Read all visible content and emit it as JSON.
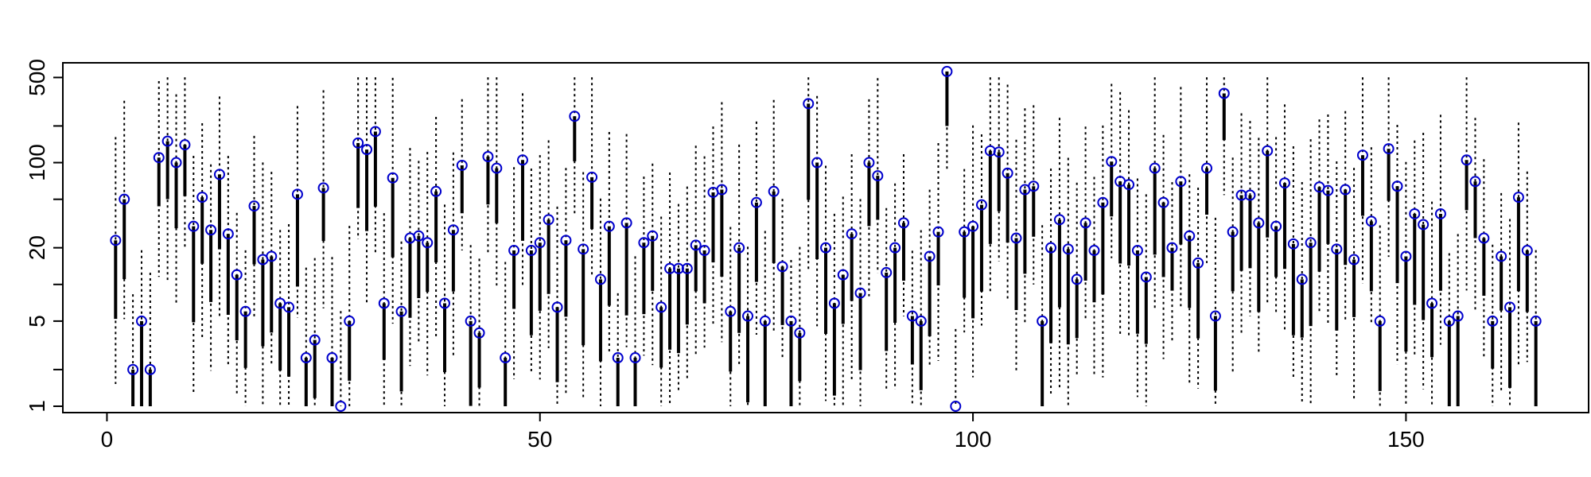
{
  "chart_data": {
    "type": "scatter",
    "title": "",
    "xlabel": "",
    "ylabel": "",
    "y_scale": "log",
    "xlim": [
      -5,
      171
    ],
    "ylim": [
      0.9,
      650
    ],
    "x_ticks": [
      {
        "value": 0,
        "label": "0"
      },
      {
        "value": 50,
        "label": "50"
      },
      {
        "value": 100,
        "label": "100"
      },
      {
        "value": 150,
        "label": "150"
      }
    ],
    "y_ticks": [
      {
        "value": 1,
        "label": "1"
      },
      {
        "value": 5,
        "label": "5"
      },
      {
        "value": 20,
        "label": "20"
      },
      {
        "value": 100,
        "label": "100"
      },
      {
        "value": 500,
        "label": "500"
      }
    ],
    "y_minor_ticks": [
      2,
      10,
      50,
      200
    ],
    "colors": {
      "point": "#0000cc",
      "whisker": "#000000",
      "highlight": "#cc0000"
    },
    "highlight": {
      "x": 97,
      "y": 1,
      "marker": "cross"
    },
    "points": [
      {
        "x": 1,
        "y": 23
      },
      {
        "x": 2,
        "y": 50
      },
      {
        "x": 3,
        "y": 2
      },
      {
        "x": 4,
        "y": 5
      },
      {
        "x": 5,
        "y": 2
      },
      {
        "x": 6,
        "y": 110
      },
      {
        "x": 7,
        "y": 150
      },
      {
        "x": 8,
        "y": 100
      },
      {
        "x": 9,
        "y": 140
      },
      {
        "x": 10,
        "y": 30
      },
      {
        "x": 11,
        "y": 52
      },
      {
        "x": 12,
        "y": 28
      },
      {
        "x": 13,
        "y": 80
      },
      {
        "x": 14,
        "y": 26
      },
      {
        "x": 15,
        "y": 12
      },
      {
        "x": 16,
        "y": 6
      },
      {
        "x": 17,
        "y": 44
      },
      {
        "x": 18,
        "y": 16
      },
      {
        "x": 19,
        "y": 17
      },
      {
        "x": 20,
        "y": 7
      },
      {
        "x": 21,
        "y": 6.5
      },
      {
        "x": 22,
        "y": 55
      },
      {
        "x": 23,
        "y": 2.5
      },
      {
        "x": 24,
        "y": 3.5
      },
      {
        "x": 25,
        "y": 62
      },
      {
        "x": 26,
        "y": 2.5
      },
      {
        "x": 27,
        "y": 1
      },
      {
        "x": 28,
        "y": 5
      },
      {
        "x": 29,
        "y": 145
      },
      {
        "x": 30,
        "y": 128
      },
      {
        "x": 31,
        "y": 180
      },
      {
        "x": 32,
        "y": 7
      },
      {
        "x": 33,
        "y": 75
      },
      {
        "x": 34,
        "y": 6
      },
      {
        "x": 35,
        "y": 24
      },
      {
        "x": 36,
        "y": 25
      },
      {
        "x": 37,
        "y": 22
      },
      {
        "x": 38,
        "y": 58
      },
      {
        "x": 39,
        "y": 7
      },
      {
        "x": 40,
        "y": 28
      },
      {
        "x": 41,
        "y": 95
      },
      {
        "x": 42,
        "y": 5
      },
      {
        "x": 43,
        "y": 4
      },
      {
        "x": 44,
        "y": 112
      },
      {
        "x": 45,
        "y": 90
      },
      {
        "x": 46,
        "y": 2.5
      },
      {
        "x": 47,
        "y": 19
      },
      {
        "x": 48,
        "y": 105
      },
      {
        "x": 49,
        "y": 19
      },
      {
        "x": 50,
        "y": 22
      },
      {
        "x": 51,
        "y": 34
      },
      {
        "x": 52,
        "y": 6.5
      },
      {
        "x": 53,
        "y": 23
      },
      {
        "x": 54,
        "y": 240
      },
      {
        "x": 55,
        "y": 19.5
      },
      {
        "x": 56,
        "y": 76
      },
      {
        "x": 57,
        "y": 11
      },
      {
        "x": 58,
        "y": 30
      },
      {
        "x": 59,
        "y": 2.5
      },
      {
        "x": 60,
        "y": 32
      },
      {
        "x": 61,
        "y": 2.5
      },
      {
        "x": 62,
        "y": 22
      },
      {
        "x": 63,
        "y": 25
      },
      {
        "x": 64,
        "y": 6.5
      },
      {
        "x": 65,
        "y": 13.5
      },
      {
        "x": 66,
        "y": 13.5
      },
      {
        "x": 67,
        "y": 13.5
      },
      {
        "x": 68,
        "y": 21
      },
      {
        "x": 69,
        "y": 19
      },
      {
        "x": 70,
        "y": 57
      },
      {
        "x": 71,
        "y": 60
      },
      {
        "x": 72,
        "y": 6
      },
      {
        "x": 73,
        "y": 20
      },
      {
        "x": 74,
        "y": 5.5
      },
      {
        "x": 75,
        "y": 47
      },
      {
        "x": 76,
        "y": 5
      },
      {
        "x": 77,
        "y": 58
      },
      {
        "x": 78,
        "y": 14
      },
      {
        "x": 79,
        "y": 5
      },
      {
        "x": 80,
        "y": 4
      },
      {
        "x": 81,
        "y": 305
      },
      {
        "x": 82,
        "y": 100
      },
      {
        "x": 83,
        "y": 20
      },
      {
        "x": 84,
        "y": 7
      },
      {
        "x": 85,
        "y": 12
      },
      {
        "x": 86,
        "y": 26
      },
      {
        "x": 87,
        "y": 8.5
      },
      {
        "x": 88,
        "y": 100
      },
      {
        "x": 89,
        "y": 78
      },
      {
        "x": 90,
        "y": 12.5
      },
      {
        "x": 91,
        "y": 20
      },
      {
        "x": 92,
        "y": 32
      },
      {
        "x": 93,
        "y": 5.5
      },
      {
        "x": 94,
        "y": 5
      },
      {
        "x": 95,
        "y": 17
      },
      {
        "x": 96,
        "y": 27
      },
      {
        "x": 97,
        "y": 560
      },
      {
        "x": 98,
        "y": 1
      },
      {
        "x": 99,
        "y": 27
      },
      {
        "x": 100,
        "y": 30
      },
      {
        "x": 101,
        "y": 45
      },
      {
        "x": 102,
        "y": 125
      },
      {
        "x": 103,
        "y": 122
      },
      {
        "x": 104,
        "y": 82
      },
      {
        "x": 105,
        "y": 24
      },
      {
        "x": 106,
        "y": 60
      },
      {
        "x": 107,
        "y": 64
      },
      {
        "x": 108,
        "y": 5
      },
      {
        "x": 109,
        "y": 20
      },
      {
        "x": 110,
        "y": 34
      },
      {
        "x": 111,
        "y": 19.5
      },
      {
        "x": 112,
        "y": 11
      },
      {
        "x": 113,
        "y": 32
      },
      {
        "x": 114,
        "y": 19
      },
      {
        "x": 115,
        "y": 47
      },
      {
        "x": 116,
        "y": 102
      },
      {
        "x": 117,
        "y": 70
      },
      {
        "x": 118,
        "y": 66
      },
      {
        "x": 119,
        "y": 19
      },
      {
        "x": 120,
        "y": 11.5
      },
      {
        "x": 121,
        "y": 90
      },
      {
        "x": 122,
        "y": 47
      },
      {
        "x": 123,
        "y": 20
      },
      {
        "x": 124,
        "y": 70
      },
      {
        "x": 125,
        "y": 25
      },
      {
        "x": 126,
        "y": 15
      },
      {
        "x": 127,
        "y": 90
      },
      {
        "x": 128,
        "y": 5.5
      },
      {
        "x": 129,
        "y": 370
      },
      {
        "x": 130,
        "y": 27
      },
      {
        "x": 131,
        "y": 54
      },
      {
        "x": 132,
        "y": 54
      },
      {
        "x": 133,
        "y": 32
      },
      {
        "x": 134,
        "y": 125
      },
      {
        "x": 135,
        "y": 30
      },
      {
        "x": 136,
        "y": 68
      },
      {
        "x": 137,
        "y": 21.5
      },
      {
        "x": 138,
        "y": 11
      },
      {
        "x": 139,
        "y": 22
      },
      {
        "x": 140,
        "y": 63
      },
      {
        "x": 141,
        "y": 59
      },
      {
        "x": 142,
        "y": 19.5
      },
      {
        "x": 143,
        "y": 60
      },
      {
        "x": 144,
        "y": 16
      },
      {
        "x": 145,
        "y": 115
      },
      {
        "x": 146,
        "y": 33
      },
      {
        "x": 147,
        "y": 5
      },
      {
        "x": 148,
        "y": 130
      },
      {
        "x": 149,
        "y": 64
      },
      {
        "x": 150,
        "y": 17
      },
      {
        "x": 151,
        "y": 38
      },
      {
        "x": 152,
        "y": 31
      },
      {
        "x": 153,
        "y": 7
      },
      {
        "x": 154,
        "y": 38
      },
      {
        "x": 155,
        "y": 5
      },
      {
        "x": 156,
        "y": 5.5
      },
      {
        "x": 157,
        "y": 105
      },
      {
        "x": 158,
        "y": 70
      },
      {
        "x": 159,
        "y": 24
      },
      {
        "x": 160,
        "y": 5
      },
      {
        "x": 161,
        "y": 17
      },
      {
        "x": 162,
        "y": 6.5
      },
      {
        "x": 163,
        "y": 52
      },
      {
        "x": 164,
        "y": 19
      },
      {
        "x": 165,
        "y": 5
      }
    ]
  }
}
